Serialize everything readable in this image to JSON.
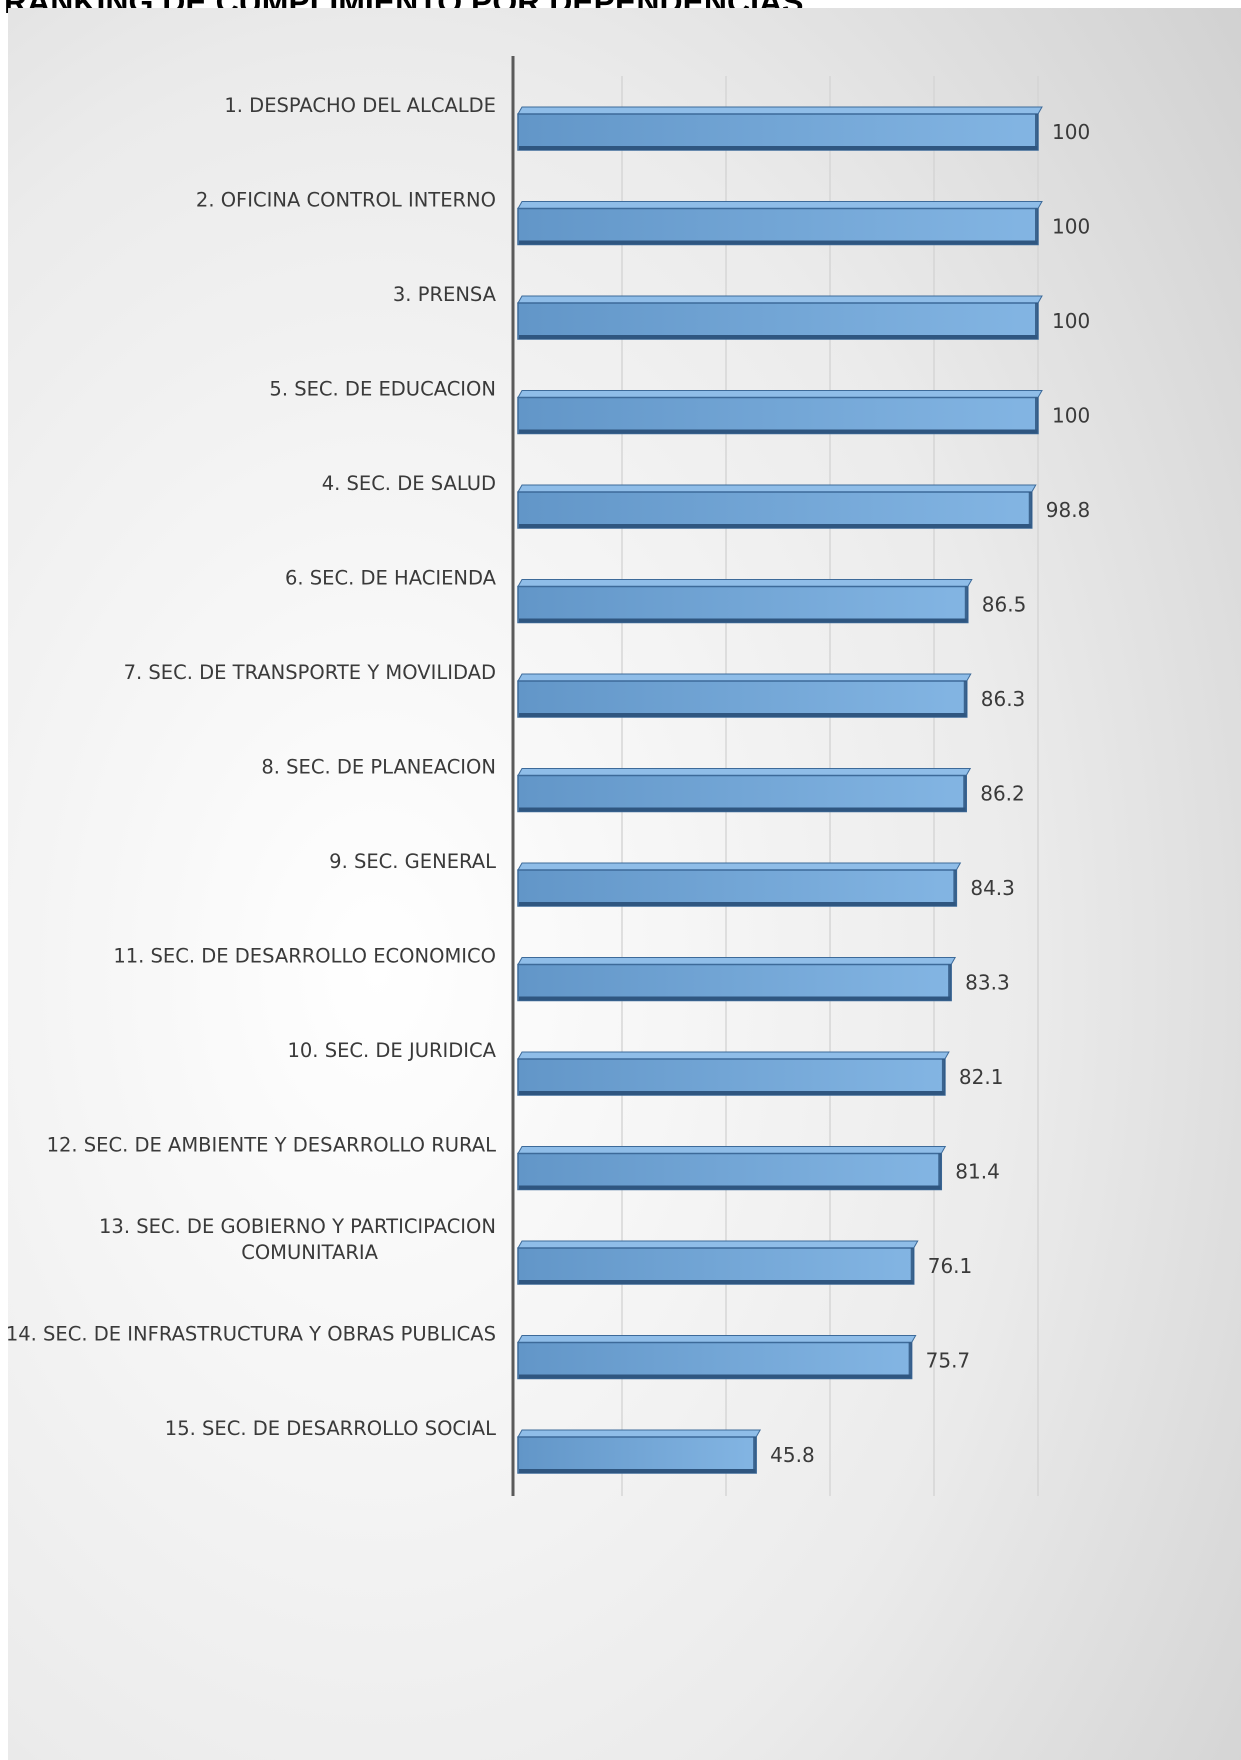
{
  "page": {
    "title": "RANKING DE CUMPLIMIENTO POR DEPENDENCIAS"
  },
  "chart_data": {
    "type": "bar",
    "orientation": "horizontal",
    "title": "",
    "xlabel": "",
    "ylabel": "",
    "xlim": [
      0,
      100
    ],
    "grid": true,
    "legend": "none",
    "colors": {
      "bar_front": "#6a9fd0",
      "bar_top": "#8fbde8",
      "bar_bottom": "#2f5680",
      "bar_stroke": "#3d6a99",
      "label_text": "#3a3a3a",
      "background_light": "#ffffff",
      "background_dark": "#cfcfcf"
    },
    "categories": [
      "1. DESPACHO DEL ALCALDE",
      "2. OFICINA CONTROL INTERNO",
      "3. PRENSA",
      "5. SEC. DE EDUCACION",
      "4. SEC. DE SALUD",
      "6. SEC. DE HACIENDA",
      "7. SEC. DE TRANSPORTE Y MOVILIDAD",
      "8. SEC. DE PLANEACION",
      "9. SEC. GENERAL",
      "11. SEC. DE DESARROLLO ECONOMICO",
      "10. SEC. DE JURIDICA",
      "12. SEC. DE AMBIENTE Y DESARROLLO RURAL",
      "13. SEC. DE GOBIERNO Y PARTICIPACION COMUNITARIA",
      "14. SEC. DE INFRASTRUCTURA Y OBRAS PUBLICAS",
      "15. SEC. DE DESARROLLO SOCIAL"
    ],
    "category_lines": [
      [
        "1. DESPACHO DEL ALCALDE"
      ],
      [
        "2. OFICINA CONTROL INTERNO"
      ],
      [
        "3. PRENSA"
      ],
      [
        "5. SEC. DE EDUCACION"
      ],
      [
        "4. SEC. DE SALUD"
      ],
      [
        "6. SEC. DE HACIENDA"
      ],
      [
        "7. SEC. DE TRANSPORTE Y MOVILIDAD"
      ],
      [
        "8. SEC. DE PLANEACION"
      ],
      [
        "9. SEC. GENERAL"
      ],
      [
        "11. SEC. DE DESARROLLO ECONOMICO"
      ],
      [
        "10. SEC. DE JURIDICA"
      ],
      [
        "12. SEC. DE AMBIENTE Y DESARROLLO RURAL"
      ],
      [
        "13. SEC. DE GOBIERNO Y PARTICIPACION",
        "COMUNITARIA"
      ],
      [
        "14. SEC. DE INFRASTRUCTURA Y OBRAS PUBLICAS"
      ],
      [
        "15. SEC. DE DESARROLLO SOCIAL"
      ]
    ],
    "values": [
      100,
      100,
      100,
      100,
      98.8,
      86.5,
      86.3,
      86.2,
      84.3,
      83.3,
      82.1,
      81.4,
      76.1,
      75.7,
      45.8
    ],
    "value_labels": [
      "100",
      "100",
      "100",
      "100",
      "98.8",
      "86.5",
      "86.3",
      "86.2",
      "84.3",
      "83.3",
      "82.1",
      "81.4",
      "76.1",
      "75.7",
      "45.8"
    ]
  }
}
